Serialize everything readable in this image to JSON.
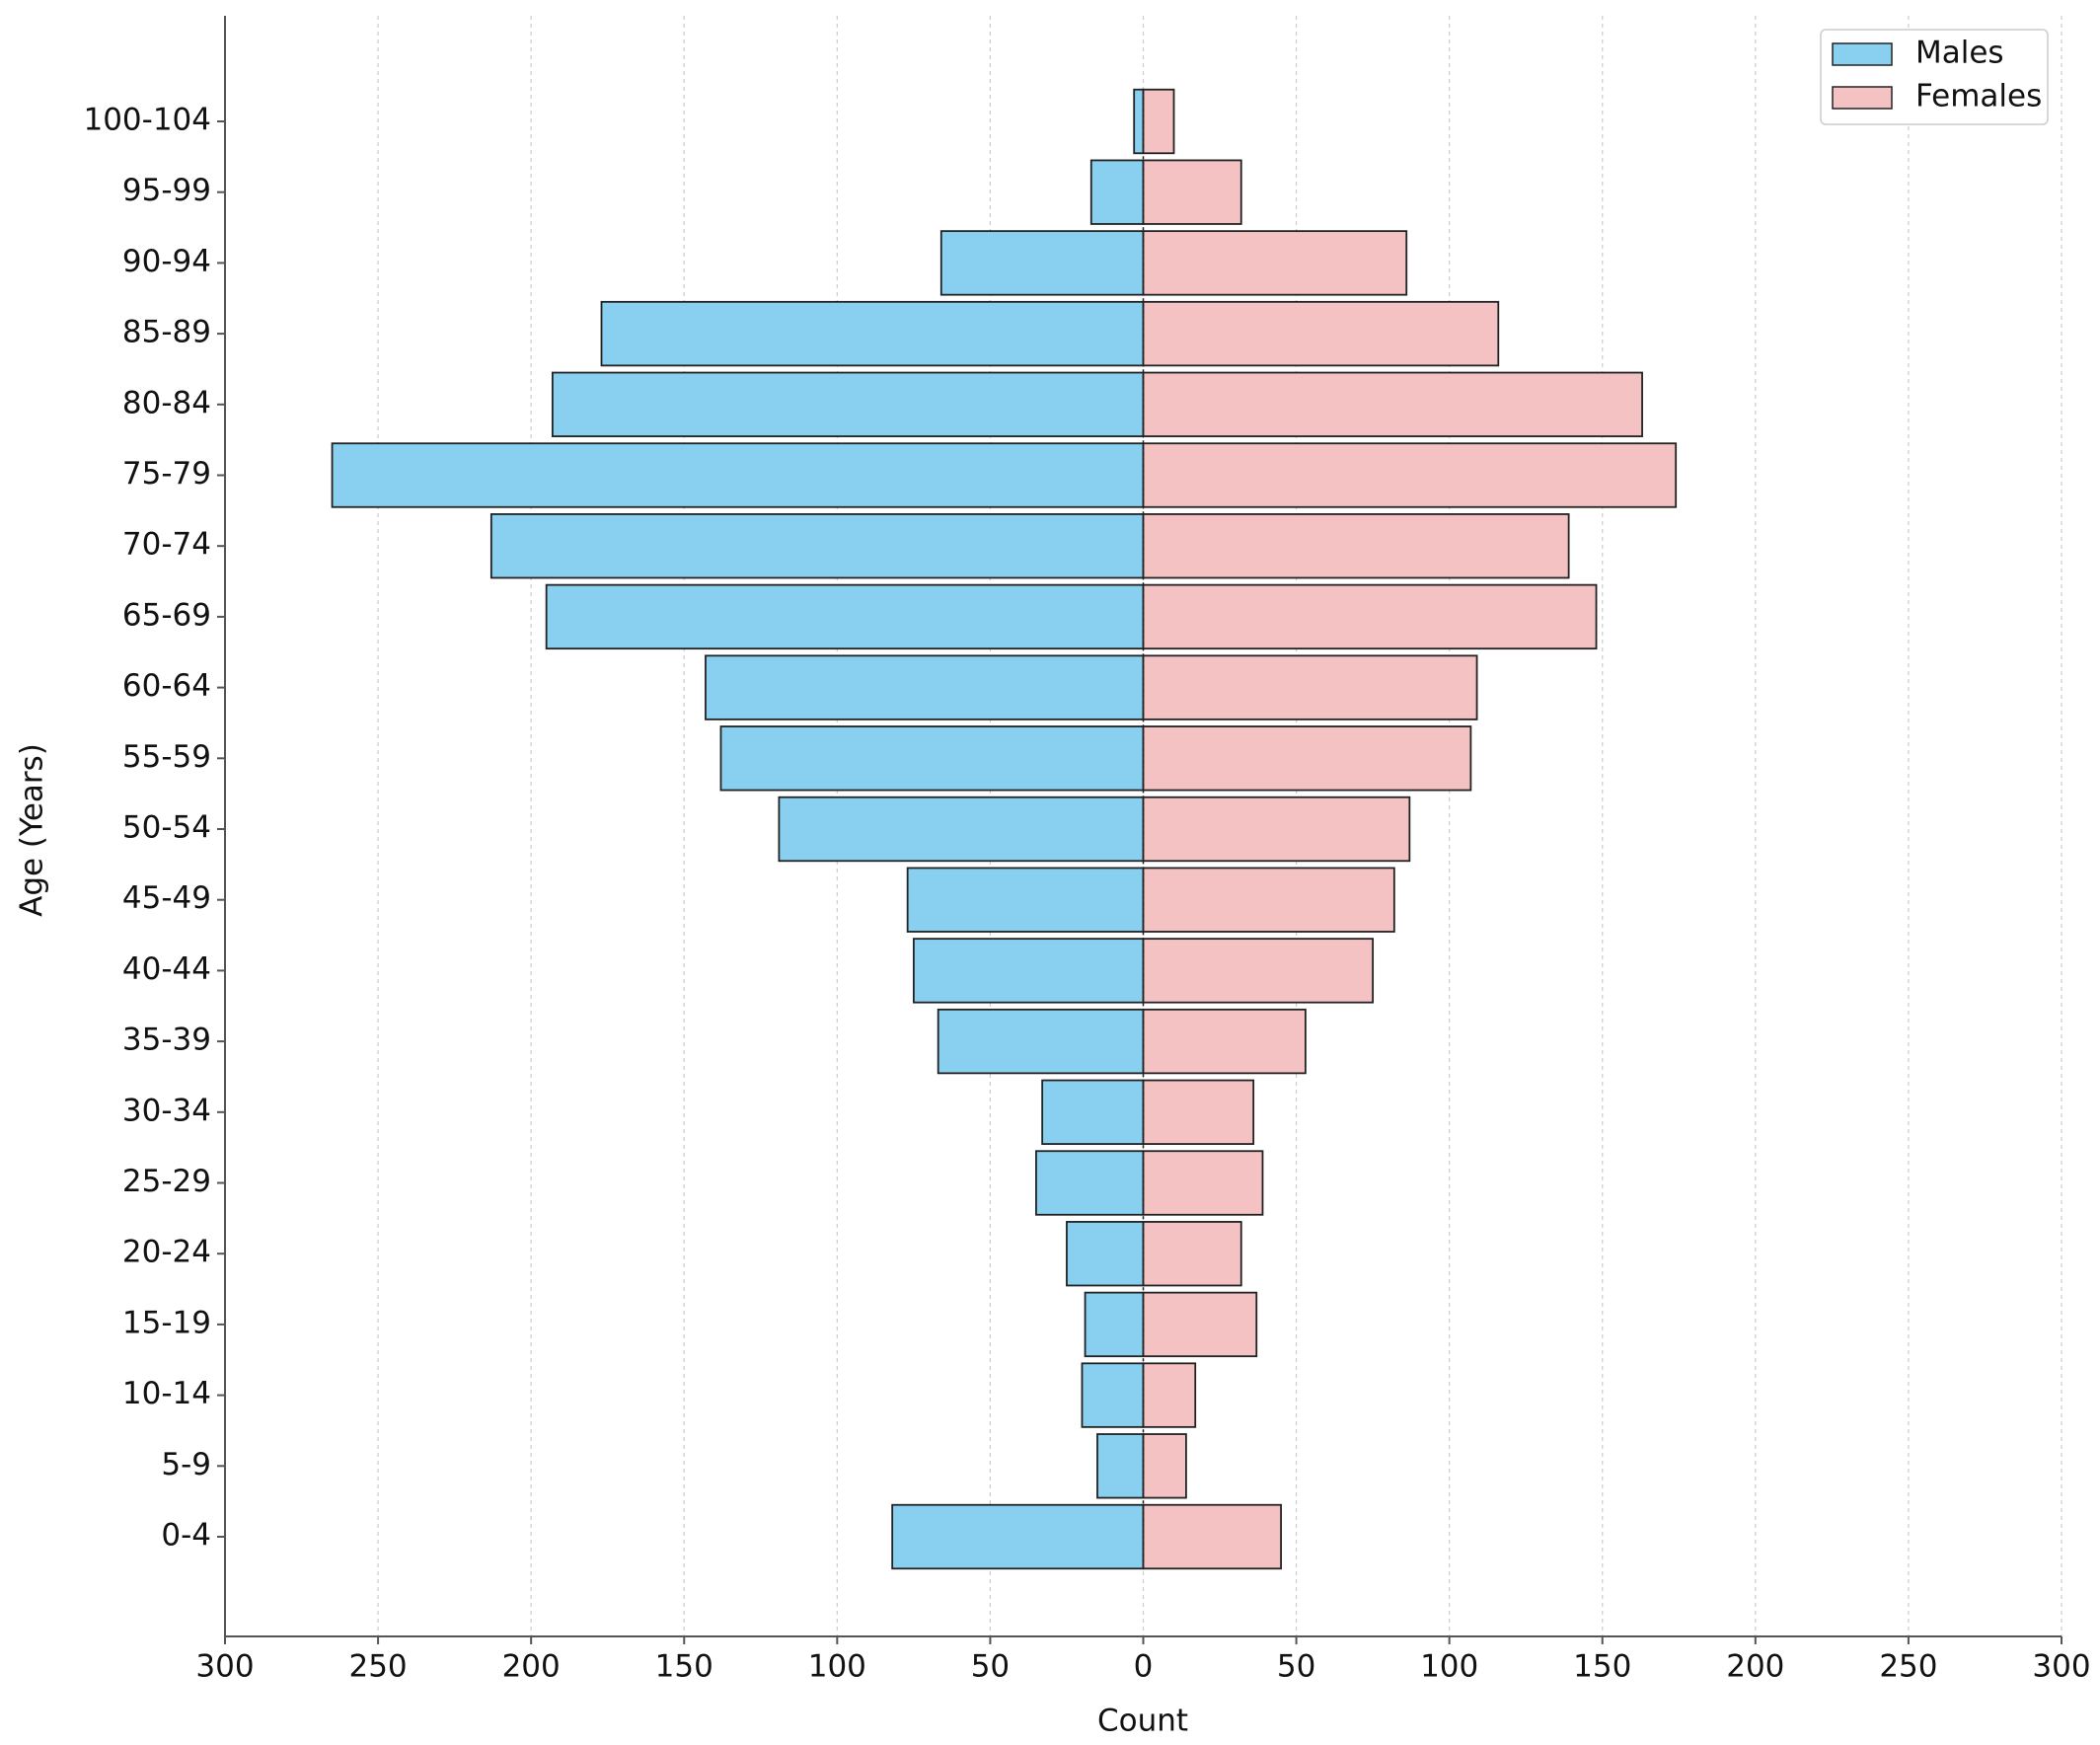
{
  "chart_data": {
    "type": "population-pyramid",
    "xlabel": "Count",
    "ylabel": "Age (Years)",
    "categories": [
      "0-4",
      "5-9",
      "10-14",
      "15-19",
      "20-24",
      "25-29",
      "30-34",
      "35-39",
      "40-44",
      "45-49",
      "50-54",
      "55-59",
      "60-64",
      "65-69",
      "70-74",
      "75-79",
      "80-84",
      "85-89",
      "90-94",
      "95-99",
      "100-104"
    ],
    "series": [
      {
        "name": "Males",
        "color": "#89cff0",
        "values": [
          -82,
          -15,
          -20,
          -19,
          -25,
          -35,
          -33,
          -67,
          -75,
          -77,
          -119,
          -138,
          -143,
          -195,
          -213,
          -265,
          -193,
          -177,
          -66,
          -17,
          -3
        ]
      },
      {
        "name": "Females",
        "color": "#f4c2c2",
        "values": [
          45,
          14,
          17,
          37,
          32,
          39,
          36,
          53,
          75,
          82,
          87,
          107,
          109,
          148,
          139,
          174,
          163,
          116,
          86,
          32,
          10
        ]
      }
    ],
    "xlim": [
      -300,
      300
    ],
    "xticks": [
      {
        "value": -300,
        "label": "300"
      },
      {
        "value": -250,
        "label": "250"
      },
      {
        "value": -200,
        "label": "200"
      },
      {
        "value": -150,
        "label": "150"
      },
      {
        "value": -100,
        "label": "100"
      },
      {
        "value": -50,
        "label": "50"
      },
      0,
      50,
      100,
      150,
      200,
      250,
      300
    ],
    "grid": true,
    "legend": "upper right"
  }
}
